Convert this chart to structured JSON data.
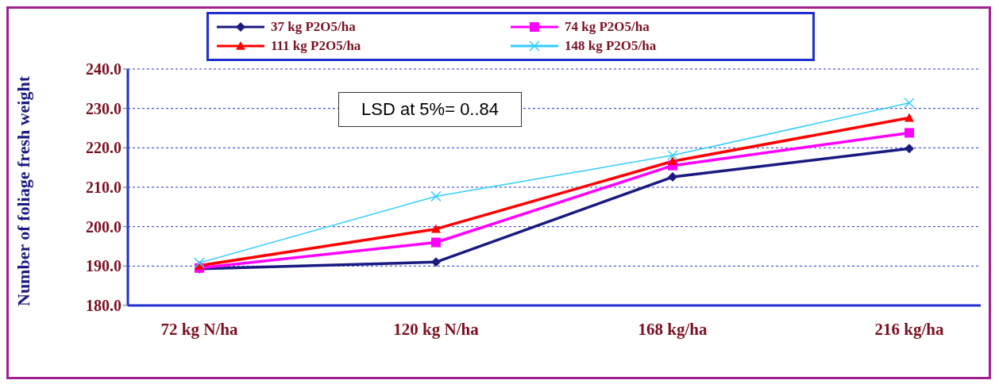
{
  "chart_data": {
    "type": "line",
    "ylabel": "Number  of foliage fresh weight",
    "categories": [
      "72 kg N/ha",
      "120 kg N/ha",
      "168 kg/ha",
      "216 kg/ha"
    ],
    "series": [
      {
        "name": "37 kg P2O5/ha",
        "color": "#1a1a80",
        "marker": "diamond",
        "values": [
          189.3,
          191.0,
          212.6,
          219.8
        ]
      },
      {
        "name": "74 kg P2O5/ha",
        "color": "#ff00ff",
        "marker": "square",
        "values": [
          189.5,
          196.0,
          215.5,
          223.8
        ]
      },
      {
        "name": "111 kg P2O5/ha",
        "color": "#ff0000",
        "marker": "triangle",
        "values": [
          190.1,
          199.4,
          216.6,
          227.6
        ]
      },
      {
        "name": "148 kg P2O5/ha",
        "color": "#33ccff",
        "marker": "cross",
        "values": [
          190.8,
          207.7,
          218.1,
          231.4
        ]
      }
    ],
    "ylim": [
      180,
      240
    ],
    "yticks": [
      {
        "value": 180,
        "label": "180.0"
      },
      {
        "value": 190,
        "label": "190.0"
      },
      {
        "value": 200,
        "label": "200.0"
      },
      {
        "value": 210,
        "label": "210.0"
      },
      {
        "value": 220,
        "label": "220.0"
      },
      {
        "value": 230,
        "label": "230.0"
      },
      {
        "value": 240,
        "label": "240.0"
      }
    ],
    "grid": "y",
    "legend": "top",
    "annotations": [
      "LSD at 5%= 0..84"
    ]
  }
}
